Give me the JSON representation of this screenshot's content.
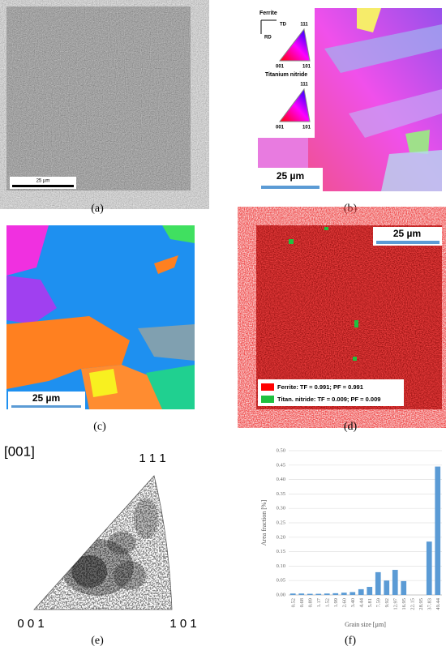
{
  "panels": {
    "a": {
      "label": "(a)",
      "scale": "25 µm"
    },
    "b": {
      "label": "(b)",
      "scale": "25 µm",
      "legend": {
        "phase1": "Ferrite",
        "td": "TD",
        "rd": "RD",
        "t1_111": "111",
        "t1_001": "001",
        "t1_101": "101",
        "phase2": "Titanium nitride",
        "t2_111": "111",
        "t2_001": "001",
        "t2_101": "101"
      }
    },
    "c": {
      "label": "(c)",
      "scale": "25 µm"
    },
    "d": {
      "label": "(d)",
      "scale": "25 µm",
      "legend": [
        "Ferrite: TF = 0.991; PF = 0.991",
        "Titan. nitride: TF = 0.009; PF = 0.009"
      ]
    },
    "e": {
      "label": "(e)",
      "title": "[001]",
      "v111": "1 1 1",
      "v001": "0 0 1",
      "v101": "1 0 1"
    },
    "f": {
      "label": "(f)"
    }
  },
  "chart_data": {
    "type": "bar",
    "x_label": "Grain size [µm]",
    "y_label": "Area fraction [%]",
    "color": "#5b9bd5",
    "grid": true,
    "categories": [
      "0.52",
      "0.68",
      "0.89",
      "1.17",
      "1.52",
      "1.99",
      "2.60",
      "3.40",
      "4.44",
      "5.81",
      "7.59",
      "9.92",
      "12.97",
      "16.95",
      "22.15",
      "28.95",
      "37.83",
      "49.44"
    ],
    "values": [
      0.005,
      0.005,
      0.004,
      0.004,
      0.005,
      0.006,
      0.008,
      0.01,
      0.02,
      0.028,
      0.079,
      0.05,
      0.087,
      0.048,
      0,
      0,
      0.185,
      0.445
    ],
    "ylim": [
      0,
      0.5
    ],
    "yticks": [
      {
        "value": 0,
        "label": "0.00"
      },
      {
        "value": 0.05,
        "label": "0.05"
      },
      {
        "value": 0.1,
        "label": "0.10"
      },
      {
        "value": 0.15,
        "label": "0.15"
      },
      {
        "value": 0.2,
        "label": "0.20"
      },
      {
        "value": 0.25,
        "label": "0.25"
      },
      {
        "value": 0.3,
        "label": "0.30"
      },
      {
        "value": 0.35,
        "label": "0.35"
      },
      {
        "value": 0.4,
        "label": "0.40"
      },
      {
        "value": 0.45,
        "label": "0.45"
      },
      {
        "value": 0.5,
        "label": "0.50"
      }
    ]
  }
}
